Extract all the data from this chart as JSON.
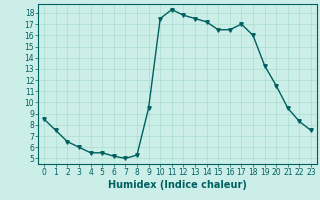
{
  "x": [
    0,
    1,
    2,
    3,
    4,
    5,
    6,
    7,
    8,
    9,
    10,
    11,
    12,
    13,
    14,
    15,
    16,
    17,
    18,
    19,
    20,
    21,
    22,
    23
  ],
  "y": [
    8.5,
    7.5,
    6.5,
    6.0,
    5.5,
    5.5,
    5.2,
    5.0,
    5.3,
    9.5,
    17.5,
    18.3,
    17.8,
    17.5,
    17.2,
    16.5,
    16.5,
    17.0,
    16.0,
    13.3,
    11.5,
    9.5,
    8.3,
    7.5
  ],
  "line_color": "#006060",
  "marker": "v",
  "marker_size": 2.5,
  "bg_color": "#cceee8",
  "grid_color": "#aaddcc",
  "xlabel": "Humidex (Indice chaleur)",
  "xlim": [
    -0.5,
    23.5
  ],
  "ylim": [
    4.5,
    18.8
  ],
  "yticks": [
    5,
    6,
    7,
    8,
    9,
    10,
    11,
    12,
    13,
    14,
    15,
    16,
    17,
    18
  ],
  "xticks": [
    0,
    1,
    2,
    3,
    4,
    5,
    6,
    7,
    8,
    9,
    10,
    11,
    12,
    13,
    14,
    15,
    16,
    17,
    18,
    19,
    20,
    21,
    22,
    23
  ],
  "tick_fontsize": 5.5,
  "xlabel_fontsize": 7.0,
  "linewidth": 1.0
}
